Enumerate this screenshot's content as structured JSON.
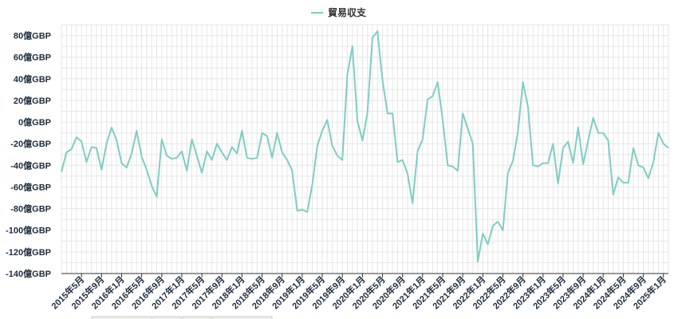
{
  "chart_data": {
    "type": "line",
    "legend": {
      "position": "top-center",
      "label": "貿易収支"
    },
    "series": [
      {
        "name": "貿易収支",
        "color": "#7ecdc4",
        "x": [
          "2015年1月",
          "2015年2月",
          "2015年3月",
          "2015年4月",
          "2015年5月",
          "2015年6月",
          "2015年7月",
          "2015年8月",
          "2015年9月",
          "2015年10月",
          "2015年11月",
          "2015年12月",
          "2016年1月",
          "2016年2月",
          "2016年3月",
          "2016年4月",
          "2016年5月",
          "2016年6月",
          "2016年7月",
          "2016年8月",
          "2016年9月",
          "2016年10月",
          "2016年11月",
          "2016年12月",
          "2017年1月",
          "2017年2月",
          "2017年3月",
          "2017年4月",
          "2017年5月",
          "2017年6月",
          "2017年7月",
          "2017年8月",
          "2017年9月",
          "2017年10月",
          "2017年11月",
          "2017年12月",
          "2018年1月",
          "2018年2月",
          "2018年3月",
          "2018年4月",
          "2018年5月",
          "2018年6月",
          "2018年7月",
          "2018年8月",
          "2018年9月",
          "2018年10月",
          "2018年11月",
          "2018年12月",
          "2019年1月",
          "2019年2月",
          "2019年3月",
          "2019年4月",
          "2019年5月",
          "2019年6月",
          "2019年7月",
          "2019年8月",
          "2019年9月",
          "2019年10月",
          "2019年11月",
          "2019年12月",
          "2020年1月",
          "2020年2月",
          "2020年3月",
          "2020年4月",
          "2020年5月",
          "2020年6月",
          "2020年7月",
          "2020年8月",
          "2020年9月",
          "2020年10月",
          "2020年11月",
          "2020年12月",
          "2021年1月",
          "2021年2月",
          "2021年3月",
          "2021年4月",
          "2021年5月",
          "2021年6月",
          "2021年7月",
          "2021年8月",
          "2021年9月",
          "2021年10月",
          "2021年11月",
          "2021年12月",
          "2022年1月",
          "2022年2月",
          "2022年3月",
          "2022年4月",
          "2022年5月",
          "2022年6月",
          "2022年7月",
          "2022年8月",
          "2022年9月",
          "2022年10月",
          "2022年11月",
          "2022年12月",
          "2023年1月",
          "2023年2月",
          "2023年3月",
          "2023年4月",
          "2023年5月",
          "2023年6月",
          "2023年7月",
          "2023年8月",
          "2023年9月",
          "2023年10月",
          "2023年11月",
          "2023年12月",
          "2024年1月",
          "2024年2月",
          "2024年3月",
          "2024年4月",
          "2024年5月",
          "2024年6月",
          "2024年7月",
          "2024年8月",
          "2024年9月",
          "2024年10月",
          "2024年11月",
          "2024年12月",
          "2025年1月",
          "2025年2月"
        ],
        "values": [
          -46,
          -28,
          -25,
          -14,
          -18,
          -37,
          -23,
          -24,
          -44,
          -20,
          -5,
          -17,
          -38,
          -42,
          -29,
          -8,
          -32,
          -44,
          -59,
          -69,
          -16,
          -31,
          -34,
          -33,
          -27,
          -45,
          -16,
          -31,
          -47,
          -27,
          -35,
          -20,
          -28,
          -35,
          -23,
          -29,
          -8,
          -33,
          -34,
          -33,
          -10,
          -13,
          -33,
          -10,
          -28,
          -35,
          -45,
          -82,
          -81,
          -83,
          -58,
          -22,
          -8,
          2,
          -22,
          -31,
          -35,
          44,
          70,
          1,
          -17,
          8,
          78,
          84,
          39,
          8,
          8,
          -37,
          -35,
          -48,
          -75,
          -27,
          -16,
          21,
          24,
          37,
          2,
          -40,
          -41,
          -45,
          8,
          -6,
          -20,
          -129,
          -103,
          -113,
          -96,
          -92,
          -100,
          -47,
          -36,
          -9,
          37,
          14,
          -40,
          -41,
          -38,
          -38,
          -20,
          -57,
          -24,
          -18,
          -38,
          -5,
          -39,
          -17,
          4,
          -10,
          -10,
          -17,
          -67,
          -51,
          -56,
          -56,
          -24,
          -40,
          -42,
          -52,
          -37,
          -10,
          -20,
          -24
        ]
      }
    ],
    "y_axis": {
      "range": [
        -140,
        90
      ],
      "ticks": [
        80,
        60,
        40,
        20,
        0,
        -20,
        -40,
        -60,
        -80,
        -100,
        -120,
        -140
      ],
      "tick_labels": [
        "80億GBP",
        "60億GBP",
        "40億GBP",
        "20億GBP",
        "0億GBP",
        "-20億GBP",
        "-40億GBP",
        "-60億GBP",
        "-80億GBP",
        "-100億GBP",
        "-120億GBP",
        "-140億GBP"
      ]
    },
    "x_axis": {
      "tick_labels": [
        {
          "label": "2015年5月",
          "index": 4
        },
        {
          "label": "2015年9月",
          "index": 8
        },
        {
          "label": "2016年1月",
          "index": 12
        },
        {
          "label": "2016年5月",
          "index": 16
        },
        {
          "label": "2016年9月",
          "index": 20
        },
        {
          "label": "2017年1月",
          "index": 24
        },
        {
          "label": "2017年5月",
          "index": 28
        },
        {
          "label": "2017年9月",
          "index": 32
        },
        {
          "label": "2018年1月",
          "index": 36
        },
        {
          "label": "2018年5月",
          "index": 40
        },
        {
          "label": "2018年9月",
          "index": 44
        },
        {
          "label": "2019年1月",
          "index": 48
        },
        {
          "label": "2019年5月",
          "index": 52
        },
        {
          "label": "2019年9月",
          "index": 56
        },
        {
          "label": "2020年1月",
          "index": 60
        },
        {
          "label": "2020年5月",
          "index": 64
        },
        {
          "label": "2020年9月",
          "index": 68
        },
        {
          "label": "2021年1月",
          "index": 72
        },
        {
          "label": "2021年5月",
          "index": 76
        },
        {
          "label": "2021年9月",
          "index": 80
        },
        {
          "label": "2022年1月",
          "index": 84
        },
        {
          "label": "2022年5月",
          "index": 88
        },
        {
          "label": "2022年9月",
          "index": 92
        },
        {
          "label": "2023年1月",
          "index": 96
        },
        {
          "label": "2023年5月",
          "index": 100
        },
        {
          "label": "2023年9月",
          "index": 104
        },
        {
          "label": "2024年1月",
          "index": 108
        },
        {
          "label": "2024年5月",
          "index": 112
        },
        {
          "label": "2024年9月",
          "index": 116
        },
        {
          "label": "2025年1月",
          "index": 120
        }
      ]
    },
    "grid": true
  }
}
